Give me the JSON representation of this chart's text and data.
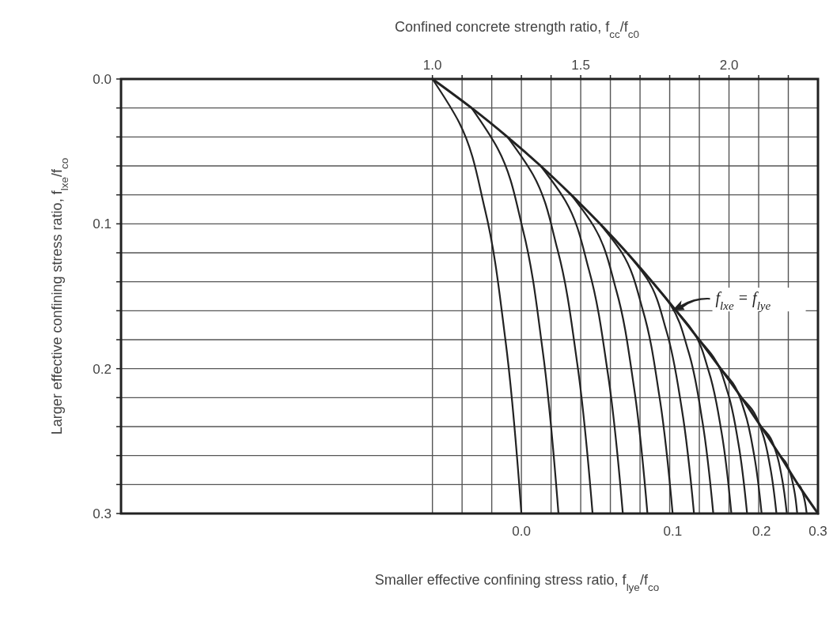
{
  "chart_data": {
    "type": "line",
    "xlabel": "Confined concrete strength ratio, f$_{cc}$/f$_{c0}$",
    "ylabel": "Larger effective confining stress ratio, f$_{lxe}$/f$_{co}$",
    "xlim": [
      -0.05,
      2.3
    ],
    "xticks": [
      {
        "value": 1.0,
        "label": "1.0"
      },
      {
        "value": 1.1,
        "label": null
      },
      {
        "value": 1.2,
        "label": null
      },
      {
        "value": 1.3,
        "label": null
      },
      {
        "value": 1.4,
        "label": null
      },
      1.5,
      {
        "value": 1.6,
        "label": null
      },
      {
        "value": 1.7,
        "label": null
      },
      {
        "value": 1.8,
        "label": null
      },
      {
        "value": 1.9,
        "label": null
      },
      {
        "value": 2.0,
        "label": "2.0"
      },
      {
        "value": 2.1,
        "label": null
      },
      {
        "value": 2.2,
        "label": null
      }
    ],
    "ylim": [
      0.3,
      0.0
    ],
    "yticks": [
      {
        "value": 0.0,
        "label": "0.0"
      },
      {
        "value": 0.02,
        "label": null
      },
      {
        "value": 0.04,
        "label": null
      },
      {
        "value": 0.06,
        "label": null
      },
      {
        "value": 0.08,
        "label": null
      },
      0.1,
      {
        "value": 0.12,
        "label": null
      },
      {
        "value": 0.14,
        "label": null
      },
      {
        "value": 0.16,
        "label": null
      },
      {
        "value": 0.18,
        "label": null
      },
      0.2,
      {
        "value": 0.22,
        "label": null
      },
      {
        "value": 0.24,
        "label": null
      },
      {
        "value": 0.26,
        "label": null
      },
      {
        "value": 0.28,
        "label": null
      },
      0.3
    ],
    "grid": true,
    "annotations": [
      {
        "text": "f$_{lxe}$ = f$_{lye}$",
        "x": 1.8,
        "y": 0.155
      },
      {
        "text": "0.0",
        "x": 1.3,
        "y": 0.3
      },
      {
        "text": "0.1",
        "x": 1.81,
        "y": 0.3
      },
      {
        "text": "0.2",
        "x": 2.11,
        "y": 0.3
      },
      {
        "text": "0.3",
        "x": 2.3,
        "y": 0.3
      },
      "Smaller effective confining stress ratio, f$_{lye}$/f$_{co}$"
    ],
    "series": [
      {
        "color": "#222222",
        "x": [
          1.0,
          1.132,
          1.253,
          1.365,
          1.468,
          1.565,
          1.656,
          1.741,
          1.822,
          1.899,
          1.972,
          2.042,
          2.108,
          2.172,
          2.233,
          2.3
        ],
        "values": [
          0,
          0.02,
          0.04,
          0.06,
          0.08,
          0.1,
          0.12,
          0.14,
          0.16,
          0.18,
          0.2,
          0.22,
          0.24,
          0.26,
          0.28,
          0.3
        ]
      },
      {
        "color": "#222222",
        "x": [
          1.0,
          1.09,
          1.177,
          1.246,
          1.3
        ],
        "values": [
          0,
          0.03,
          0.09,
          0.18,
          0.3
        ]
      },
      {
        "color": "#222222",
        "x": [
          1.132,
          1.22,
          1.305,
          1.372,
          1.425
        ],
        "values": [
          0.02,
          0.048,
          0.104,
          0.188,
          0.3
        ]
      },
      {
        "color": "#222222",
        "x": [
          1.253,
          1.339,
          1.422,
          1.488,
          1.54
        ],
        "values": [
          0.04,
          0.066,
          0.118,
          0.196,
          0.3
        ]
      },
      {
        "color": "#222222",
        "x": [
          1.365,
          1.448,
          1.528,
          1.592,
          1.642
        ],
        "values": [
          0.06,
          0.084,
          0.132,
          0.204,
          0.3
        ]
      },
      {
        "color": "#222222",
        "x": [
          1.468,
          1.545,
          1.62,
          1.679,
          1.725
        ],
        "values": [
          0.08,
          0.102,
          0.146,
          0.212,
          0.3
        ]
      },
      {
        "color": "#222222",
        "x": [
          1.565,
          1.639,
          1.71,
          1.766,
          1.81
        ],
        "values": [
          0.1,
          0.12,
          0.16,
          0.22,
          0.3
        ]
      },
      {
        "color": "#222222",
        "x": [
          1.656,
          1.724,
          1.789,
          1.841,
          1.882
        ],
        "values": [
          0.12,
          0.138,
          0.174,
          0.228,
          0.3
        ]
      },
      {
        "color": "#222222",
        "x": [
          1.741,
          1.803,
          1.863,
          1.91,
          1.947
        ],
        "values": [
          0.14,
          0.156,
          0.188,
          0.236,
          0.3
        ]
      },
      {
        "color": "#222222",
        "x": [
          1.822,
          1.878,
          1.932,
          1.975,
          2.008
        ],
        "values": [
          0.16,
          0.174,
          0.202,
          0.244,
          0.3
        ]
      },
      {
        "color": "#222222",
        "x": [
          1.899,
          1.948,
          1.995,
          2.032,
          2.061
        ],
        "values": [
          0.18,
          0.192,
          0.216,
          0.252,
          0.3
        ]
      },
      {
        "color": "#222222",
        "x": [
          1.972,
          2.013,
          2.053,
          2.085,
          2.11
        ],
        "values": [
          0.2,
          0.21,
          0.23,
          0.26,
          0.3
        ]
      },
      {
        "color": "#222222",
        "x": [
          2.042,
          2.077,
          2.112,
          2.139,
          2.16
        ],
        "values": [
          0.22,
          0.228,
          0.244,
          0.268,
          0.3
        ]
      },
      {
        "color": "#222222",
        "x": [
          2.108,
          2.134,
          2.159,
          2.179,
          2.195
        ],
        "values": [
          0.24,
          0.246,
          0.258,
          0.276,
          0.3
        ]
      },
      {
        "color": "#222222",
        "x": [
          2.172,
          2.189,
          2.206,
          2.22,
          2.23
        ],
        "values": [
          0.26,
          0.264,
          0.272,
          0.284,
          0.3
        ]
      },
      {
        "color": "#222222",
        "x": [
          2.233,
          2.242,
          2.262
        ],
        "values": [
          0.28,
          0.282,
          0.3
        ]
      }
    ]
  }
}
